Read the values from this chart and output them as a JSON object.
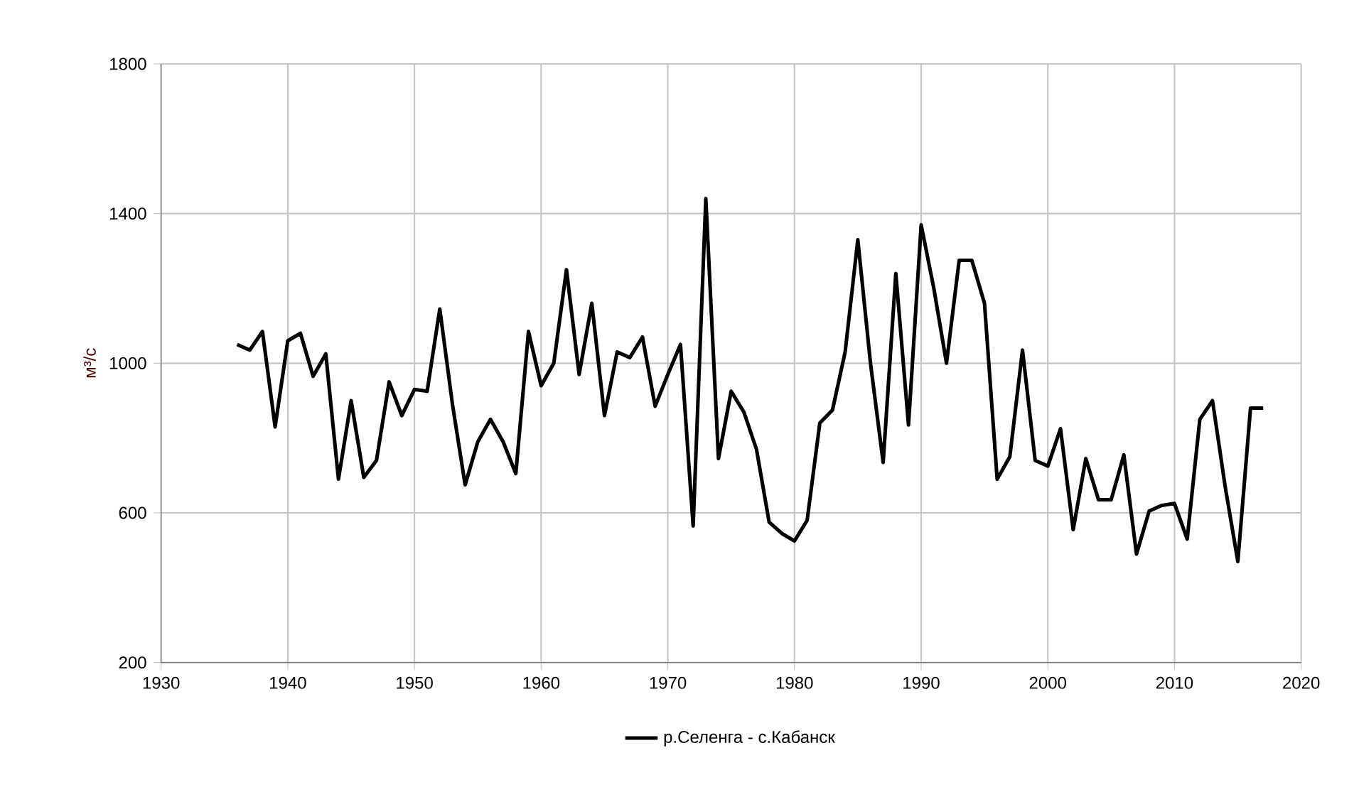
{
  "chart_data": {
    "type": "line",
    "ylabel": "м³/с",
    "x": [
      1936,
      1937,
      1938,
      1939,
      1940,
      1941,
      1942,
      1943,
      1944,
      1945,
      1946,
      1947,
      1948,
      1949,
      1950,
      1951,
      1952,
      1953,
      1954,
      1955,
      1956,
      1957,
      1958,
      1959,
      1960,
      1961,
      1962,
      1963,
      1964,
      1965,
      1966,
      1967,
      1968,
      1969,
      1970,
      1971,
      1972,
      1973,
      1974,
      1975,
      1976,
      1977,
      1978,
      1979,
      1980,
      1981,
      1982,
      1983,
      1984,
      1985,
      1986,
      1987,
      1988,
      1989,
      1990,
      1991,
      1992,
      1993,
      1994,
      1995,
      1996,
      1997,
      1998,
      1999,
      2000,
      2001,
      2002,
      2003,
      2004,
      2005,
      2006,
      2007,
      2008,
      2009,
      2010,
      2011,
      2012,
      2013,
      2014,
      2015,
      2016,
      2017
    ],
    "series": [
      {
        "name": "р.Селенга - с.Кабанск",
        "color": "#000000",
        "values": [
          1050,
          1035,
          1085,
          830,
          1060,
          1080,
          965,
          1025,
          690,
          900,
          695,
          740,
          950,
          860,
          930,
          925,
          1145,
          890,
          675,
          790,
          850,
          790,
          705,
          1085,
          940,
          1000,
          1250,
          970,
          1160,
          860,
          1030,
          1015,
          1070,
          885,
          970,
          1050,
          565,
          1440,
          745,
          925,
          870,
          770,
          575,
          545,
          525,
          580,
          840,
          875,
          1030,
          1330,
          1000,
          735,
          1240,
          835,
          1370,
          1200,
          1000,
          1275,
          1275,
          1160,
          690,
          750,
          1035,
          740,
          725,
          825,
          555,
          745,
          635,
          635,
          755,
          490,
          605,
          620,
          625,
          530,
          850,
          900,
          670,
          470,
          880,
          880
        ]
      }
    ],
    "xlim": [
      1930,
      2020
    ],
    "xticks": [
      1930,
      1940,
      1950,
      1960,
      1970,
      1980,
      1990,
      2000,
      2010,
      2020
    ],
    "ylim": [
      200,
      1800
    ],
    "yticks": [
      200,
      600,
      1000,
      1400,
      1800
    ],
    "grid": true,
    "legend": "bottom",
    "marker": "none",
    "line_style": "solid"
  }
}
